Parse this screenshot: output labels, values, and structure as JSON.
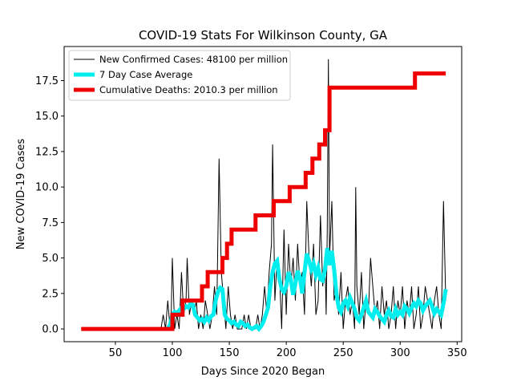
{
  "chart_data": {
    "type": "line",
    "title": "COVID-19 Stats For Wilkinson County, GA",
    "xlabel": "Days Since 2020 Began",
    "ylabel": "New COVID-19 Cases",
    "xlim": [
      5,
      354
    ],
    "ylim": [
      -0.9,
      19.9
    ],
    "xticks": [
      50,
      100,
      150,
      200,
      250,
      300,
      350
    ],
    "yticks": [
      0.0,
      2.5,
      5.0,
      7.5,
      10.0,
      12.5,
      15.0,
      17.5
    ],
    "ytick_labels": [
      "0.0",
      "2.5",
      "5.0",
      "7.5",
      "10.0",
      "12.5",
      "15.0",
      "17.5"
    ],
    "grid": false,
    "legend_position": "top-left",
    "series": [
      {
        "name": "New Confirmed Cases: 48100 per million",
        "color": "#000000",
        "line_width": 1,
        "x": [
          20,
          90,
          92,
          94,
          96,
          98,
          99,
          100,
          102,
          104,
          106,
          107,
          108,
          110,
          112,
          113,
          115,
          117,
          119,
          121,
          123,
          125,
          127,
          129,
          131,
          133,
          135,
          137,
          139,
          141,
          143,
          145,
          147,
          149,
          151,
          153,
          155,
          157,
          159,
          161,
          163,
          165,
          167,
          169,
          171,
          173,
          175,
          177,
          179,
          181,
          183,
          185,
          187,
          188,
          190,
          192,
          194,
          196,
          198,
          200,
          202,
          204,
          206,
          208,
          210,
          212,
          214,
          216,
          218,
          220,
          222,
          224,
          226,
          228,
          230,
          232,
          234,
          235,
          236,
          237,
          238,
          240,
          242,
          244,
          246,
          248,
          250,
          252,
          254,
          256,
          258,
          260,
          261,
          262,
          264,
          266,
          268,
          270,
          272,
          274,
          276,
          278,
          280,
          282,
          284,
          286,
          288,
          290,
          292,
          294,
          296,
          298,
          300,
          302,
          304,
          306,
          308,
          310,
          312,
          314,
          316,
          318,
          320,
          322,
          324,
          326,
          328,
          330,
          332,
          334,
          336,
          338,
          340
        ],
        "y": [
          0,
          0,
          1,
          0,
          2,
          0,
          1,
          5,
          0,
          1,
          0,
          2,
          4,
          1,
          2,
          5,
          1,
          2,
          1,
          2,
          0,
          1,
          0,
          2,
          1,
          0,
          1,
          3,
          1,
          12,
          4,
          2,
          0,
          3,
          1,
          0,
          1,
          0,
          0,
          0,
          1,
          0,
          1,
          0,
          0,
          0,
          1,
          0,
          1,
          3,
          1,
          4,
          6,
          13,
          2,
          5,
          4,
          0,
          7,
          1,
          6,
          3,
          5,
          2,
          6,
          3,
          4,
          1,
          9,
          5,
          3,
          6,
          1,
          2,
          8,
          3,
          5,
          1,
          7,
          19,
          5,
          9,
          2,
          3,
          1,
          4,
          0,
          2,
          3,
          1,
          2,
          0,
          10,
          3,
          1,
          4,
          0,
          2,
          1,
          5,
          3,
          1,
          2,
          0,
          3,
          1,
          2,
          0,
          1,
          3,
          0,
          2,
          1,
          3,
          0,
          2,
          1,
          3,
          0,
          1,
          3,
          0,
          1,
          3,
          2,
          1,
          0,
          2,
          3,
          1,
          0,
          9,
          2
        ]
      },
      {
        "name": "7 Day Case Average",
        "color": "#00eeee",
        "line_width": 5,
        "x": [
          96,
          98,
          100,
          102,
          104,
          106,
          108,
          110,
          112,
          114,
          116,
          118,
          120,
          122,
          124,
          126,
          128,
          130,
          132,
          134,
          136,
          138,
          140,
          142,
          144,
          146,
          148,
          150,
          152,
          154,
          156,
          158,
          160,
          162,
          164,
          166,
          168,
          170,
          172,
          174,
          176,
          178,
          180,
          182,
          184,
          186,
          188,
          190,
          192,
          194,
          196,
          198,
          200,
          202,
          204,
          206,
          208,
          210,
          212,
          214,
          216,
          218,
          220,
          222,
          224,
          226,
          228,
          230,
          232,
          234,
          236,
          238,
          240,
          242,
          244,
          246,
          248,
          250,
          252,
          254,
          256,
          258,
          260,
          262,
          264,
          266,
          268,
          270,
          272,
          274,
          276,
          278,
          280,
          282,
          284,
          286,
          288,
          290,
          292,
          294,
          296,
          298,
          300,
          302,
          304,
          306,
          308,
          310,
          312,
          314,
          316,
          318,
          320,
          322,
          324,
          326,
          328,
          330,
          332,
          334,
          336,
          338,
          340
        ],
        "y": [
          0,
          0.3,
          1.0,
          1.2,
          1.1,
          1.3,
          1.5,
          1.4,
          1.6,
          1.5,
          1.8,
          1.7,
          1.0,
          0.8,
          0.6,
          0.7,
          0.5,
          0.8,
          0.6,
          0.9,
          1.0,
          2.0,
          2.6,
          2.9,
          2.8,
          1.0,
          0.7,
          0.6,
          0.4,
          0.5,
          0.3,
          0.2,
          0.5,
          0.4,
          0.2,
          0.3,
          0.1,
          0.0,
          0.1,
          0.2,
          0.0,
          0.2,
          0.5,
          1.0,
          1.5,
          3.0,
          4.0,
          4.6,
          4.8,
          3.5,
          2.8,
          2.6,
          3.0,
          4.0,
          3.5,
          2.4,
          3.2,
          4.1,
          3.6,
          2.5,
          4.0,
          5.3,
          4.8,
          4.2,
          4.6,
          3.8,
          4.3,
          3.5,
          3.4,
          4.2,
          5.7,
          4.5,
          5.5,
          4.2,
          2.5,
          1.5,
          1.2,
          1.8,
          2.0,
          1.6,
          2.2,
          1.8,
          1.4,
          0.8,
          0.6,
          1.0,
          1.5,
          2.0,
          1.2,
          1.0,
          0.8,
          1.4,
          1.2,
          0.9,
          0.7,
          0.5,
          1.0,
          1.3,
          0.9,
          0.8,
          1.4,
          1.0,
          1.2,
          1.0,
          1.6,
          1.4,
          1.1,
          1.5,
          1.8,
          1.6,
          2.0,
          1.8,
          1.3,
          1.6,
          1.8,
          2.0,
          1.6,
          1.1,
          1.4,
          1.2,
          1.0,
          1.8,
          2.8
        ]
      },
      {
        "name": "Cumulative Deaths: 2010.3 per million",
        "color": "#ee0000",
        "line_width": 5,
        "step": true,
        "x": [
          20,
          100,
          109,
          126,
          131,
          144,
          148,
          152,
          154,
          173,
          189,
          203,
          217,
          223,
          229,
          234,
          238,
          313,
          340
        ],
        "y": [
          0,
          1,
          2,
          3,
          4,
          5,
          6,
          7,
          7,
          8,
          9,
          10,
          11,
          12,
          13,
          14,
          17,
          18,
          18
        ]
      }
    ]
  }
}
